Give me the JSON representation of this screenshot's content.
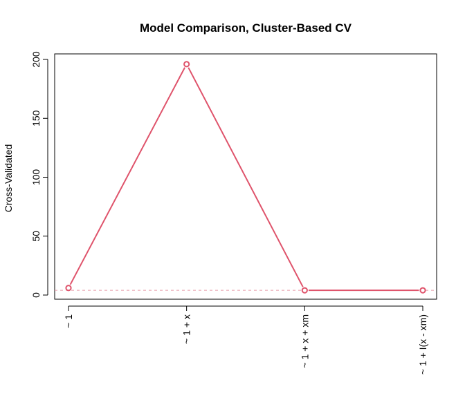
{
  "chart_data": {
    "type": "line",
    "title": "Model Comparison, Cluster-Based CV",
    "xlabel": "",
    "ylabel": "Cross-Validated",
    "categories": [
      "~ 1",
      "~ 1 + x",
      "~ 1 + x + xm",
      "~ 1 + I(x - xm)"
    ],
    "series": [
      {
        "values": [
          6,
          196,
          4,
          4
        ]
      }
    ],
    "reference_line": {
      "y": 4,
      "style": "dashed"
    },
    "yticks": [
      0,
      50,
      100,
      150,
      200
    ],
    "ylim": [
      0,
      203
    ],
    "grid": false,
    "colors": {
      "series": "#DF536B",
      "reference": "#E89AA8",
      "axis": "#000000"
    }
  }
}
